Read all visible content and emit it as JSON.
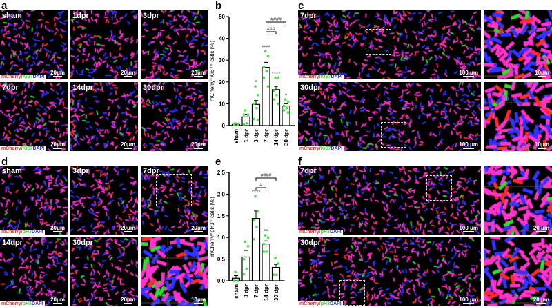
{
  "panels": {
    "a": "a",
    "b": "b",
    "c": "c",
    "d": "d",
    "e": "e",
    "f": "f"
  },
  "legend": {
    "mcherry": "mCherry/",
    "ki67": "Ki67",
    "pH3": "pH3",
    "dapi": "DAPI"
  },
  "colors": {
    "mcherry": "#ff2a2a",
    "green": "#33dd33",
    "dapi": "#3333ff",
    "magenta": "#ff33cc",
    "dots": "#33ee33"
  },
  "a_images": [
    {
      "tag": "sham",
      "scale": "20μm"
    },
    {
      "tag": "1dpr",
      "scale": "20μm"
    },
    {
      "tag": "3dpr",
      "scale": "20μm"
    },
    {
      "tag": "7dpr",
      "scale": "20μm"
    },
    {
      "tag": "14dpr",
      "scale": "20μm"
    },
    {
      "tag": "30dpr",
      "scale": "20μm"
    }
  ],
  "c_images": [
    {
      "tag": "7dpr",
      "scale": "100 μm",
      "side_scale": "10μm"
    },
    {
      "tag": "30dpr",
      "scale": "100 μm",
      "side_scale": "10μm"
    }
  ],
  "d_images": [
    {
      "tag": "sham",
      "scale": "20μm"
    },
    {
      "tag": "3dpr",
      "scale": "20μm"
    },
    {
      "tag": "7dpr",
      "scale": "20μm"
    },
    {
      "tag": "14dpr",
      "scale": "20μm"
    },
    {
      "tag": "30dpr",
      "scale": "20μm"
    },
    {
      "tag": "",
      "scale": "10μm"
    }
  ],
  "f_images": [
    {
      "tag": "7dpr",
      "scale": "100 μm",
      "side_scale": "20 μm"
    },
    {
      "tag": "30dpr",
      "scale": "100 μm",
      "side_scale": "20 μm"
    }
  ],
  "chart_data": [
    {
      "type": "bar",
      "panel": "b",
      "ylabel": "mCherry⁺Ki67⁺ cells (%)",
      "ylim": [
        0,
        50
      ],
      "yticks": [
        0,
        10,
        20,
        30,
        40,
        50
      ],
      "categories": [
        "sham",
        "1 dpr",
        "3 dpr",
        "7 dpr",
        "14 dpr",
        "30 dpr"
      ],
      "values": [
        0.5,
        4,
        9.7,
        26.7,
        16.5,
        9
      ],
      "errors": [
        0.3,
        1.2,
        1.8,
        2.3,
        1.5,
        1.0
      ],
      "points": [
        [
          1,
          0.5,
          0.3
        ],
        [
          7,
          5,
          5,
          1,
          0.5
        ],
        [
          18,
          14,
          10,
          8,
          3,
          2.5
        ],
        [
          34,
          32,
          27,
          25,
          22,
          18
        ],
        [
          22,
          22,
          16,
          14,
          12,
          10
        ],
        [
          12,
          11,
          9,
          8,
          7,
          6
        ]
      ],
      "stars": [
        "",
        "",
        "*",
        "****",
        "****",
        "*"
      ],
      "comparisons": [
        {
          "from": "7 dpr",
          "to": "14 dpr",
          "label": "###"
        },
        {
          "from": "7 dpr",
          "to": "30 dpr",
          "label": "####"
        }
      ]
    },
    {
      "type": "bar",
      "panel": "e",
      "ylabel": "mCherry⁺pH3⁺ cells (%)",
      "ylim": [
        0,
        2.5
      ],
      "yticks": [
        "0.0",
        "0.5",
        "1.0",
        "1.5",
        "2.0",
        "2.5"
      ],
      "categories": [
        "sham",
        "3 dpr",
        "7 dpr",
        "14 dpr",
        "30 dpr"
      ],
      "values": [
        0.06,
        0.55,
        1.44,
        0.85,
        0.31
      ],
      "errors": [
        0.06,
        0.15,
        0.17,
        0.07,
        0.07
      ],
      "points": [
        [
          0.2,
          0,
          0
        ],
        [
          0.9,
          0.8,
          0.5,
          0.28,
          0.15
        ],
        [
          1.95,
          1.6,
          1.4,
          1.25,
          0.96
        ],
        [
          1.05,
          1.0,
          0.85,
          0.67,
          0.67
        ],
        [
          0.53,
          0.4,
          0.14,
          0.14
        ]
      ],
      "stars": [
        "",
        "",
        "****",
        "**",
        ""
      ],
      "comparisons": [
        {
          "from": "7 dpr",
          "to": "14 dpr",
          "label": "#"
        },
        {
          "from": "7 dpr",
          "to": "30 dpr",
          "label": "####"
        }
      ]
    }
  ]
}
